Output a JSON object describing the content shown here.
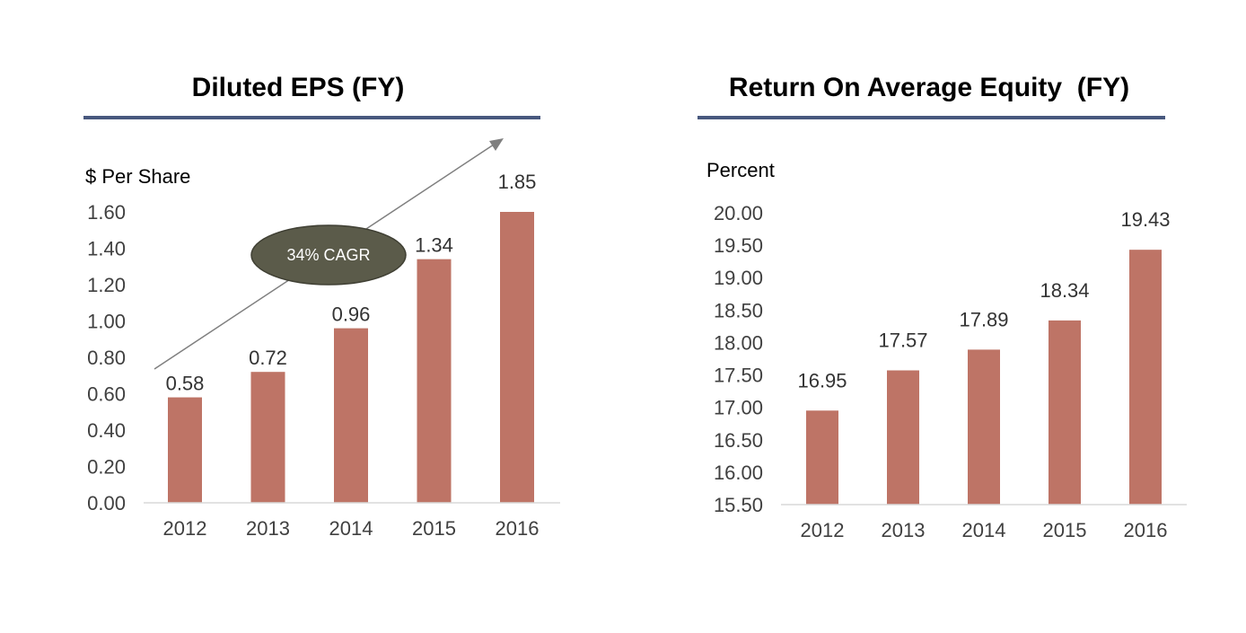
{
  "colors": {
    "bar": "#be7466",
    "title_rule": "#48587e",
    "axis": "#d9d9d9",
    "arrow": "#7f7f7f",
    "badge_fill": "#5b5b4a",
    "badge_stroke": "#3f3f33"
  },
  "chart_data": [
    {
      "type": "bar",
      "title": "Diluted EPS (FY)",
      "ylabel": "$ Per Share",
      "categories": [
        "2012",
        "2013",
        "2014",
        "2015",
        "2016"
      ],
      "values": [
        0.58,
        0.72,
        0.96,
        1.34,
        1.85
      ],
      "value_labels": [
        "0.58",
        "0.72",
        "0.96",
        "1.34",
        "1.85"
      ],
      "ylim": [
        0,
        1.6
      ],
      "yticks": [
        "0.00",
        "0.20",
        "0.40",
        "0.60",
        "0.80",
        "1.00",
        "1.20",
        "1.40",
        "1.60"
      ],
      "value_axis_clipped": true,
      "grid": false,
      "annotation": {
        "text": "34% CAGR",
        "shape": "ellipse",
        "arrow": "upward trend arrow from 2012 to beyond 2016"
      }
    },
    {
      "type": "bar",
      "title": "Return On Average Equity  (FY)",
      "ylabel": "Percent",
      "categories": [
        "2012",
        "2013",
        "2014",
        "2015",
        "2016"
      ],
      "values": [
        16.95,
        17.57,
        17.89,
        18.34,
        19.43
      ],
      "value_labels": [
        "16.95",
        "17.57",
        "17.89",
        "18.34",
        "19.43"
      ],
      "ylim": [
        15.5,
        20.0
      ],
      "yticks": [
        "15.50",
        "16.00",
        "16.50",
        "17.00",
        "17.50",
        "18.00",
        "18.50",
        "19.00",
        "19.50",
        "20.00"
      ],
      "grid": false
    }
  ]
}
